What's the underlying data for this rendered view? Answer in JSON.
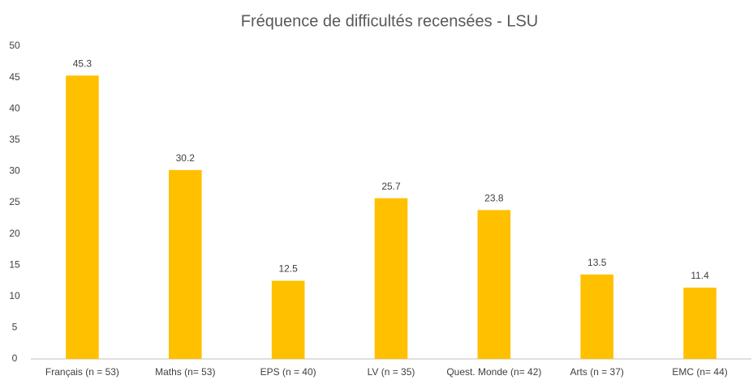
{
  "chart_data": {
    "type": "bar",
    "title": "Fréquence de difficultés recensées - LSU",
    "categories": [
      "Français (n = 53)",
      "Maths (n= 53)",
      "EPS (n = 40)",
      "LV (n = 35)",
      "Quest. Monde (n= 42)",
      "Arts (n = 37)",
      "EMC (n= 44)"
    ],
    "values": [
      45.3,
      30.2,
      12.5,
      25.7,
      23.8,
      13.5,
      11.4
    ],
    "color": "#ffc000",
    "ylim": [
      0,
      50
    ],
    "yticks": [
      0,
      5,
      10,
      15,
      20,
      25,
      30,
      35,
      40,
      45,
      50
    ],
    "grid": false
  }
}
